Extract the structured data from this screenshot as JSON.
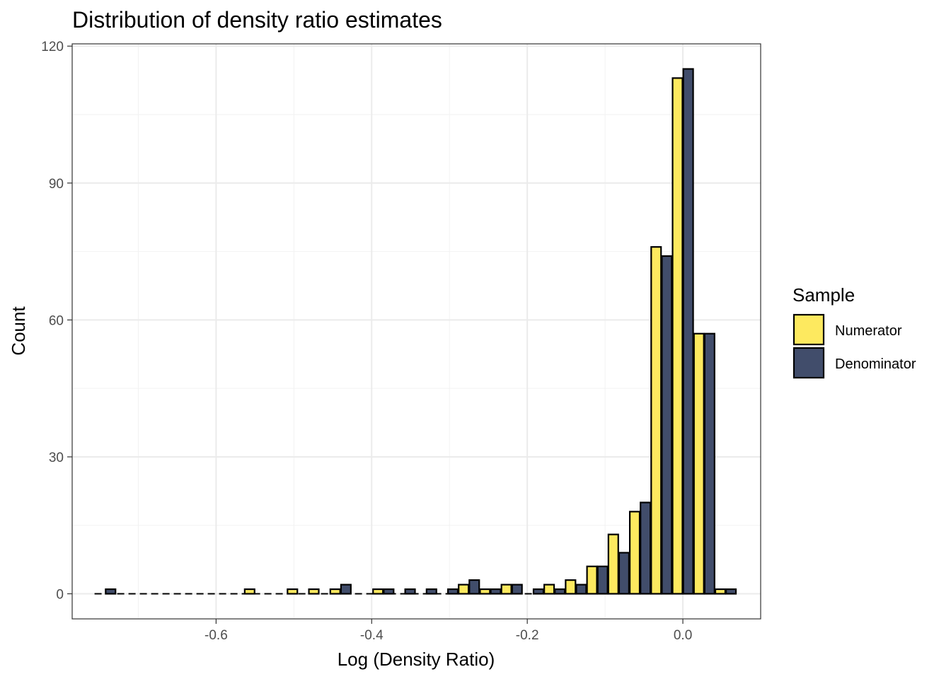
{
  "chart_data": {
    "type": "bar",
    "title": "Distribution of density ratio estimates",
    "xlabel": "Log (Density Ratio)",
    "ylabel": "Count",
    "xlim": [
      -0.785,
      0.1
    ],
    "ylim": [
      -5.5,
      120.5
    ],
    "xticks": [
      -0.6,
      -0.4,
      -0.2,
      0.0
    ],
    "xtick_labels": [
      "-0.6",
      "-0.4",
      "-0.2",
      "0.0"
    ],
    "yticks": [
      0,
      30,
      60,
      90,
      120
    ],
    "ytick_labels": [
      "0",
      "30",
      "60",
      "90",
      "120"
    ],
    "grid": true,
    "legend": {
      "title": "Sample",
      "placement": "right"
    },
    "bin_width": 0.0275,
    "x": [
      -0.7425,
      -0.715,
      -0.6875,
      -0.66,
      -0.6325,
      -0.605,
      -0.5775,
      -0.55,
      -0.5225,
      -0.495,
      -0.4675,
      -0.44,
      -0.4125,
      -0.385,
      -0.3575,
      -0.33,
      -0.3025,
      -0.275,
      -0.2475,
      -0.22,
      -0.1925,
      -0.165,
      -0.1375,
      -0.11,
      -0.0825,
      -0.055,
      -0.0275,
      0.0,
      0.0275,
      0.055
    ],
    "series": [
      {
        "name": "Numerator",
        "color": "#FDE95F",
        "values": [
          0,
          0,
          0,
          0,
          0,
          0,
          0,
          1,
          0,
          1,
          1,
          1,
          0,
          1,
          0,
          0,
          0,
          2,
          1,
          2,
          0,
          2,
          3,
          6,
          13,
          18,
          76,
          113,
          57,
          1
        ]
      },
      {
        "name": "Denominator",
        "color": "#414D6B",
        "values": [
          1,
          0,
          0,
          0,
          0,
          0,
          0,
          0,
          0,
          0,
          0,
          2,
          0,
          1,
          1,
          1,
          1,
          3,
          1,
          2,
          1,
          1,
          2,
          6,
          9,
          20,
          74,
          115,
          57,
          1
        ]
      }
    ]
  }
}
